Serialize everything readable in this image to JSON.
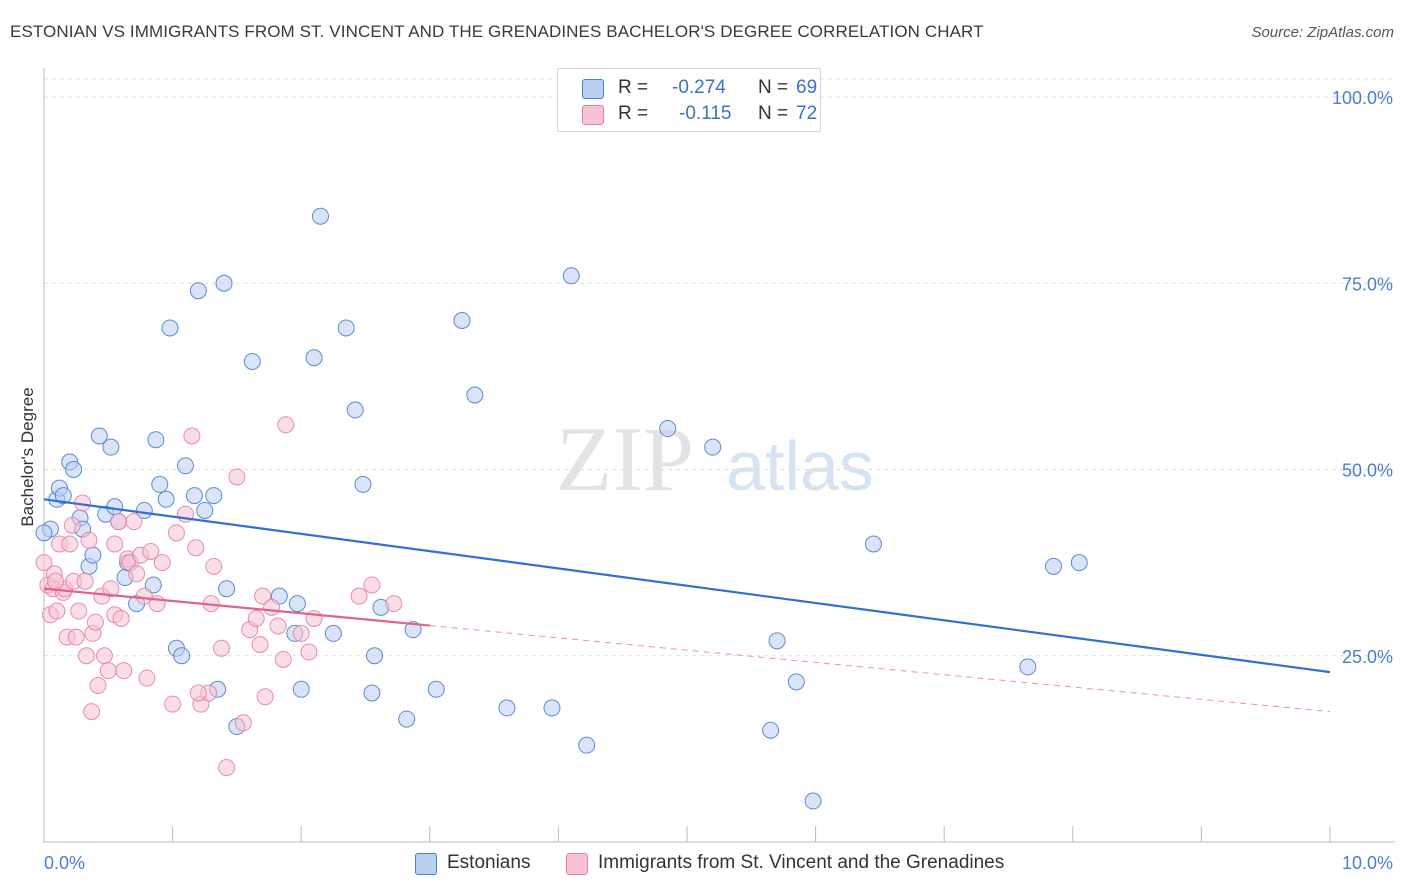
{
  "title": "ESTONIAN VS IMMIGRANTS FROM ST. VINCENT AND THE GRENADINES BACHELOR'S DEGREE CORRELATION CHART",
  "source": "Source: ZipAtlas.com",
  "watermark": {
    "zip": "ZIP",
    "atlas": "atlas"
  },
  "colors": {
    "blue": "#4a7fd0",
    "blue_fill": "#b9d0f0",
    "blue_line": "#2f6fd6",
    "pink": "#e87fa3",
    "pink_fill": "#f6c3d4",
    "pink_line": "#e0628e",
    "grid": "#dddddd",
    "tick_text": "#4a7fd0"
  },
  "legend_top": {
    "rows": [
      {
        "r_label": "R =",
        "r_value": "-0.274",
        "n_label": "N =",
        "n_value": "69",
        "color": "#b9d0f0",
        "border": "#4a7fd0"
      },
      {
        "r_label": "R =",
        "r_value": "-0.115",
        "n_label": "N =",
        "n_value": "72",
        "color": "#f6c3d4",
        "border": "#e87fa3"
      }
    ]
  },
  "legend_bottom": [
    {
      "label": "Estonians",
      "color": "#b9d0f0",
      "border": "#4a7fd0"
    },
    {
      "label": "Immigrants from St. Vincent and the Grenadines",
      "color": "#f6c3d4",
      "border": "#e87fa3"
    }
  ],
  "chart_data": {
    "type": "scatter",
    "ylabel": "Bachelor's Degree",
    "xlabel": "",
    "xlim": [
      0,
      10
    ],
    "ylim": [
      0,
      102
    ],
    "x_tick_labels": [
      {
        "x": 0,
        "label": "0.0%"
      },
      {
        "x": 10,
        "label": "10.0%"
      }
    ],
    "y_tick_labels": [
      {
        "y": 25,
        "label": "25.0%"
      },
      {
        "y": 50,
        "label": "50.0%"
      },
      {
        "y": 75,
        "label": "75.0%"
      },
      {
        "y": 100,
        "label": "100.0%"
      }
    ],
    "grid": true,
    "series": [
      {
        "name": "Estonians",
        "r": -0.274,
        "n": 69,
        "trend": {
          "x0": 0,
          "y0": 46.0,
          "x1": 10,
          "y1": 22.8,
          "solid_until": 10
        },
        "points": [
          [
            0.05,
            42
          ],
          [
            0.1,
            46
          ],
          [
            0.12,
            47.5
          ],
          [
            0.15,
            46.5
          ],
          [
            0.2,
            51
          ],
          [
            0.23,
            50
          ],
          [
            0.28,
            43.5
          ],
          [
            0.3,
            42
          ],
          [
            0.35,
            37
          ],
          [
            0.38,
            38.5
          ],
          [
            0.43,
            54.5
          ],
          [
            0.48,
            44
          ],
          [
            0.52,
            53
          ],
          [
            0.55,
            45
          ],
          [
            0.58,
            43
          ],
          [
            0.63,
            35.5
          ],
          [
            0.65,
            37.5
          ],
          [
            0.72,
            32
          ],
          [
            0.78,
            44.5
          ],
          [
            0.85,
            34.5
          ],
          [
            0.87,
            54
          ],
          [
            0.9,
            48
          ],
          [
            0.95,
            46
          ],
          [
            0.98,
            69
          ],
          [
            1.03,
            26
          ],
          [
            1.07,
            25
          ],
          [
            1.1,
            50.5
          ],
          [
            1.17,
            46.5
          ],
          [
            1.2,
            74
          ],
          [
            1.25,
            44.5
          ],
          [
            1.32,
            46.5
          ],
          [
            1.35,
            20.5
          ],
          [
            1.4,
            75
          ],
          [
            1.42,
            34
          ],
          [
            1.5,
            15.5
          ],
          [
            1.62,
            64.5
          ],
          [
            1.83,
            33
          ],
          [
            1.95,
            28
          ],
          [
            1.97,
            32
          ],
          [
            2.0,
            20.5
          ],
          [
            2.1,
            65
          ],
          [
            2.15,
            84
          ],
          [
            2.25,
            28
          ],
          [
            2.35,
            69
          ],
          [
            2.42,
            58
          ],
          [
            2.48,
            48
          ],
          [
            2.55,
            20
          ],
          [
            2.57,
            25
          ],
          [
            2.62,
            31.5
          ],
          [
            2.82,
            16.5
          ],
          [
            2.87,
            28.5
          ],
          [
            3.05,
            20.5
          ],
          [
            3.25,
            70
          ],
          [
            3.35,
            60
          ],
          [
            3.6,
            18
          ],
          [
            3.95,
            18
          ],
          [
            4.1,
            76
          ],
          [
            4.22,
            13
          ],
          [
            4.85,
            55.5
          ],
          [
            5.2,
            53
          ],
          [
            5.65,
            15
          ],
          [
            5.7,
            27
          ],
          [
            5.85,
            21.5
          ],
          [
            5.98,
            5.5
          ],
          [
            6.45,
            40
          ],
          [
            7.65,
            23.5
          ],
          [
            7.85,
            37
          ],
          [
            8.05,
            37.5
          ],
          [
            0.0,
            41.5
          ]
        ]
      },
      {
        "name": "Immigrants from St. Vincent and the Grenadines",
        "r": -0.115,
        "n": 72,
        "trend": {
          "x0": 0,
          "y0": 34.0,
          "x1": 10,
          "y1": 17.5,
          "solid_until": 3.0
        },
        "points": [
          [
            0.0,
            37.5
          ],
          [
            0.03,
            34.5
          ],
          [
            0.05,
            30.5
          ],
          [
            0.07,
            34
          ],
          [
            0.08,
            36
          ],
          [
            0.1,
            31
          ],
          [
            0.12,
            40
          ],
          [
            0.15,
            33.5
          ],
          [
            0.16,
            34
          ],
          [
            0.18,
            27.5
          ],
          [
            0.2,
            40
          ],
          [
            0.22,
            42.5
          ],
          [
            0.23,
            35
          ],
          [
            0.25,
            27.5
          ],
          [
            0.27,
            31
          ],
          [
            0.3,
            45.5
          ],
          [
            0.32,
            35
          ],
          [
            0.33,
            25
          ],
          [
            0.35,
            40.5
          ],
          [
            0.37,
            17.5
          ],
          [
            0.38,
            28
          ],
          [
            0.4,
            29.5
          ],
          [
            0.42,
            21
          ],
          [
            0.45,
            33
          ],
          [
            0.47,
            25
          ],
          [
            0.5,
            23
          ],
          [
            0.52,
            34
          ],
          [
            0.55,
            30.5
          ],
          [
            0.58,
            43
          ],
          [
            0.6,
            30
          ],
          [
            0.62,
            23
          ],
          [
            0.65,
            38
          ],
          [
            0.67,
            37.5
          ],
          [
            0.7,
            43
          ],
          [
            0.72,
            36
          ],
          [
            0.75,
            38.5
          ],
          [
            0.78,
            33
          ],
          [
            0.8,
            22
          ],
          [
            0.83,
            39
          ],
          [
            0.88,
            32
          ],
          [
            0.92,
            37.5
          ],
          [
            1.0,
            18.5
          ],
          [
            1.03,
            41.5
          ],
          [
            1.1,
            44
          ],
          [
            1.15,
            54.5
          ],
          [
            1.18,
            39.5
          ],
          [
            1.22,
            18.5
          ],
          [
            1.28,
            20
          ],
          [
            1.3,
            32
          ],
          [
            1.32,
            37
          ],
          [
            1.38,
            26
          ],
          [
            1.42,
            10
          ],
          [
            1.5,
            49
          ],
          [
            1.55,
            16
          ],
          [
            1.6,
            28.5
          ],
          [
            1.65,
            30
          ],
          [
            1.68,
            26.5
          ],
          [
            1.7,
            33
          ],
          [
            1.72,
            19.5
          ],
          [
            1.77,
            31.5
          ],
          [
            1.82,
            29
          ],
          [
            1.86,
            24.5
          ],
          [
            1.88,
            56
          ],
          [
            2.0,
            28
          ],
          [
            2.06,
            25.5
          ],
          [
            2.1,
            30
          ],
          [
            2.45,
            33
          ],
          [
            2.55,
            34.5
          ],
          [
            2.72,
            32
          ],
          [
            0.09,
            35
          ],
          [
            1.2,
            20
          ],
          [
            0.55,
            40
          ]
        ]
      }
    ]
  }
}
